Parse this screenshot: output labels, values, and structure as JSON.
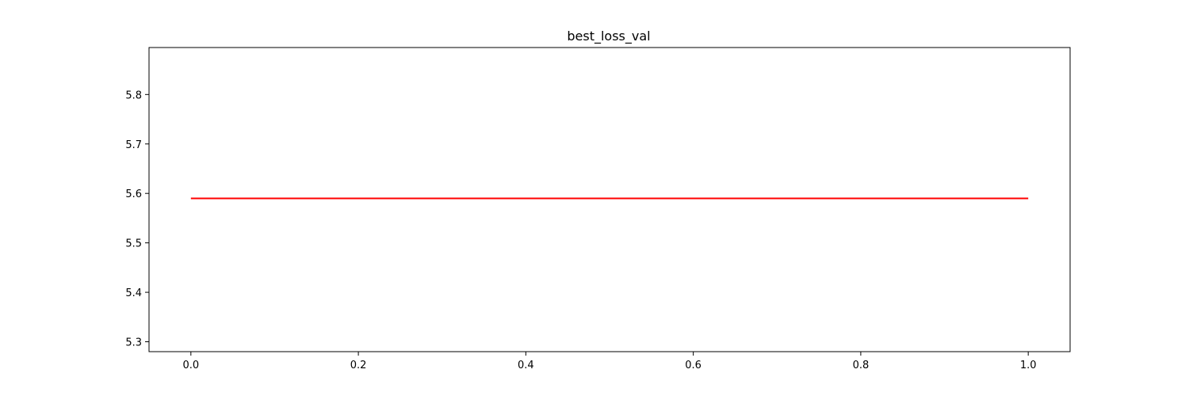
{
  "chart_data": {
    "type": "line",
    "title": "best_loss_val",
    "xlabel": "",
    "ylabel": "",
    "xlim": [
      -0.05,
      1.05
    ],
    "ylim": [
      5.28,
      5.895
    ],
    "x_ticks": [
      0.0,
      0.2,
      0.4,
      0.6,
      0.8,
      1.0
    ],
    "x_tick_labels": [
      "0.0",
      "0.2",
      "0.4",
      "0.6",
      "0.8",
      "1.0"
    ],
    "y_ticks": [
      5.3,
      5.4,
      5.5,
      5.6,
      5.7,
      5.8
    ],
    "y_tick_labels": [
      "5.3",
      "5.4",
      "5.5",
      "5.6",
      "5.7",
      "5.8"
    ],
    "grid": false,
    "series": [
      {
        "color": "#ff0000",
        "x": [
          0.0,
          1.0
        ],
        "y": [
          5.59,
          5.59
        ]
      }
    ]
  }
}
